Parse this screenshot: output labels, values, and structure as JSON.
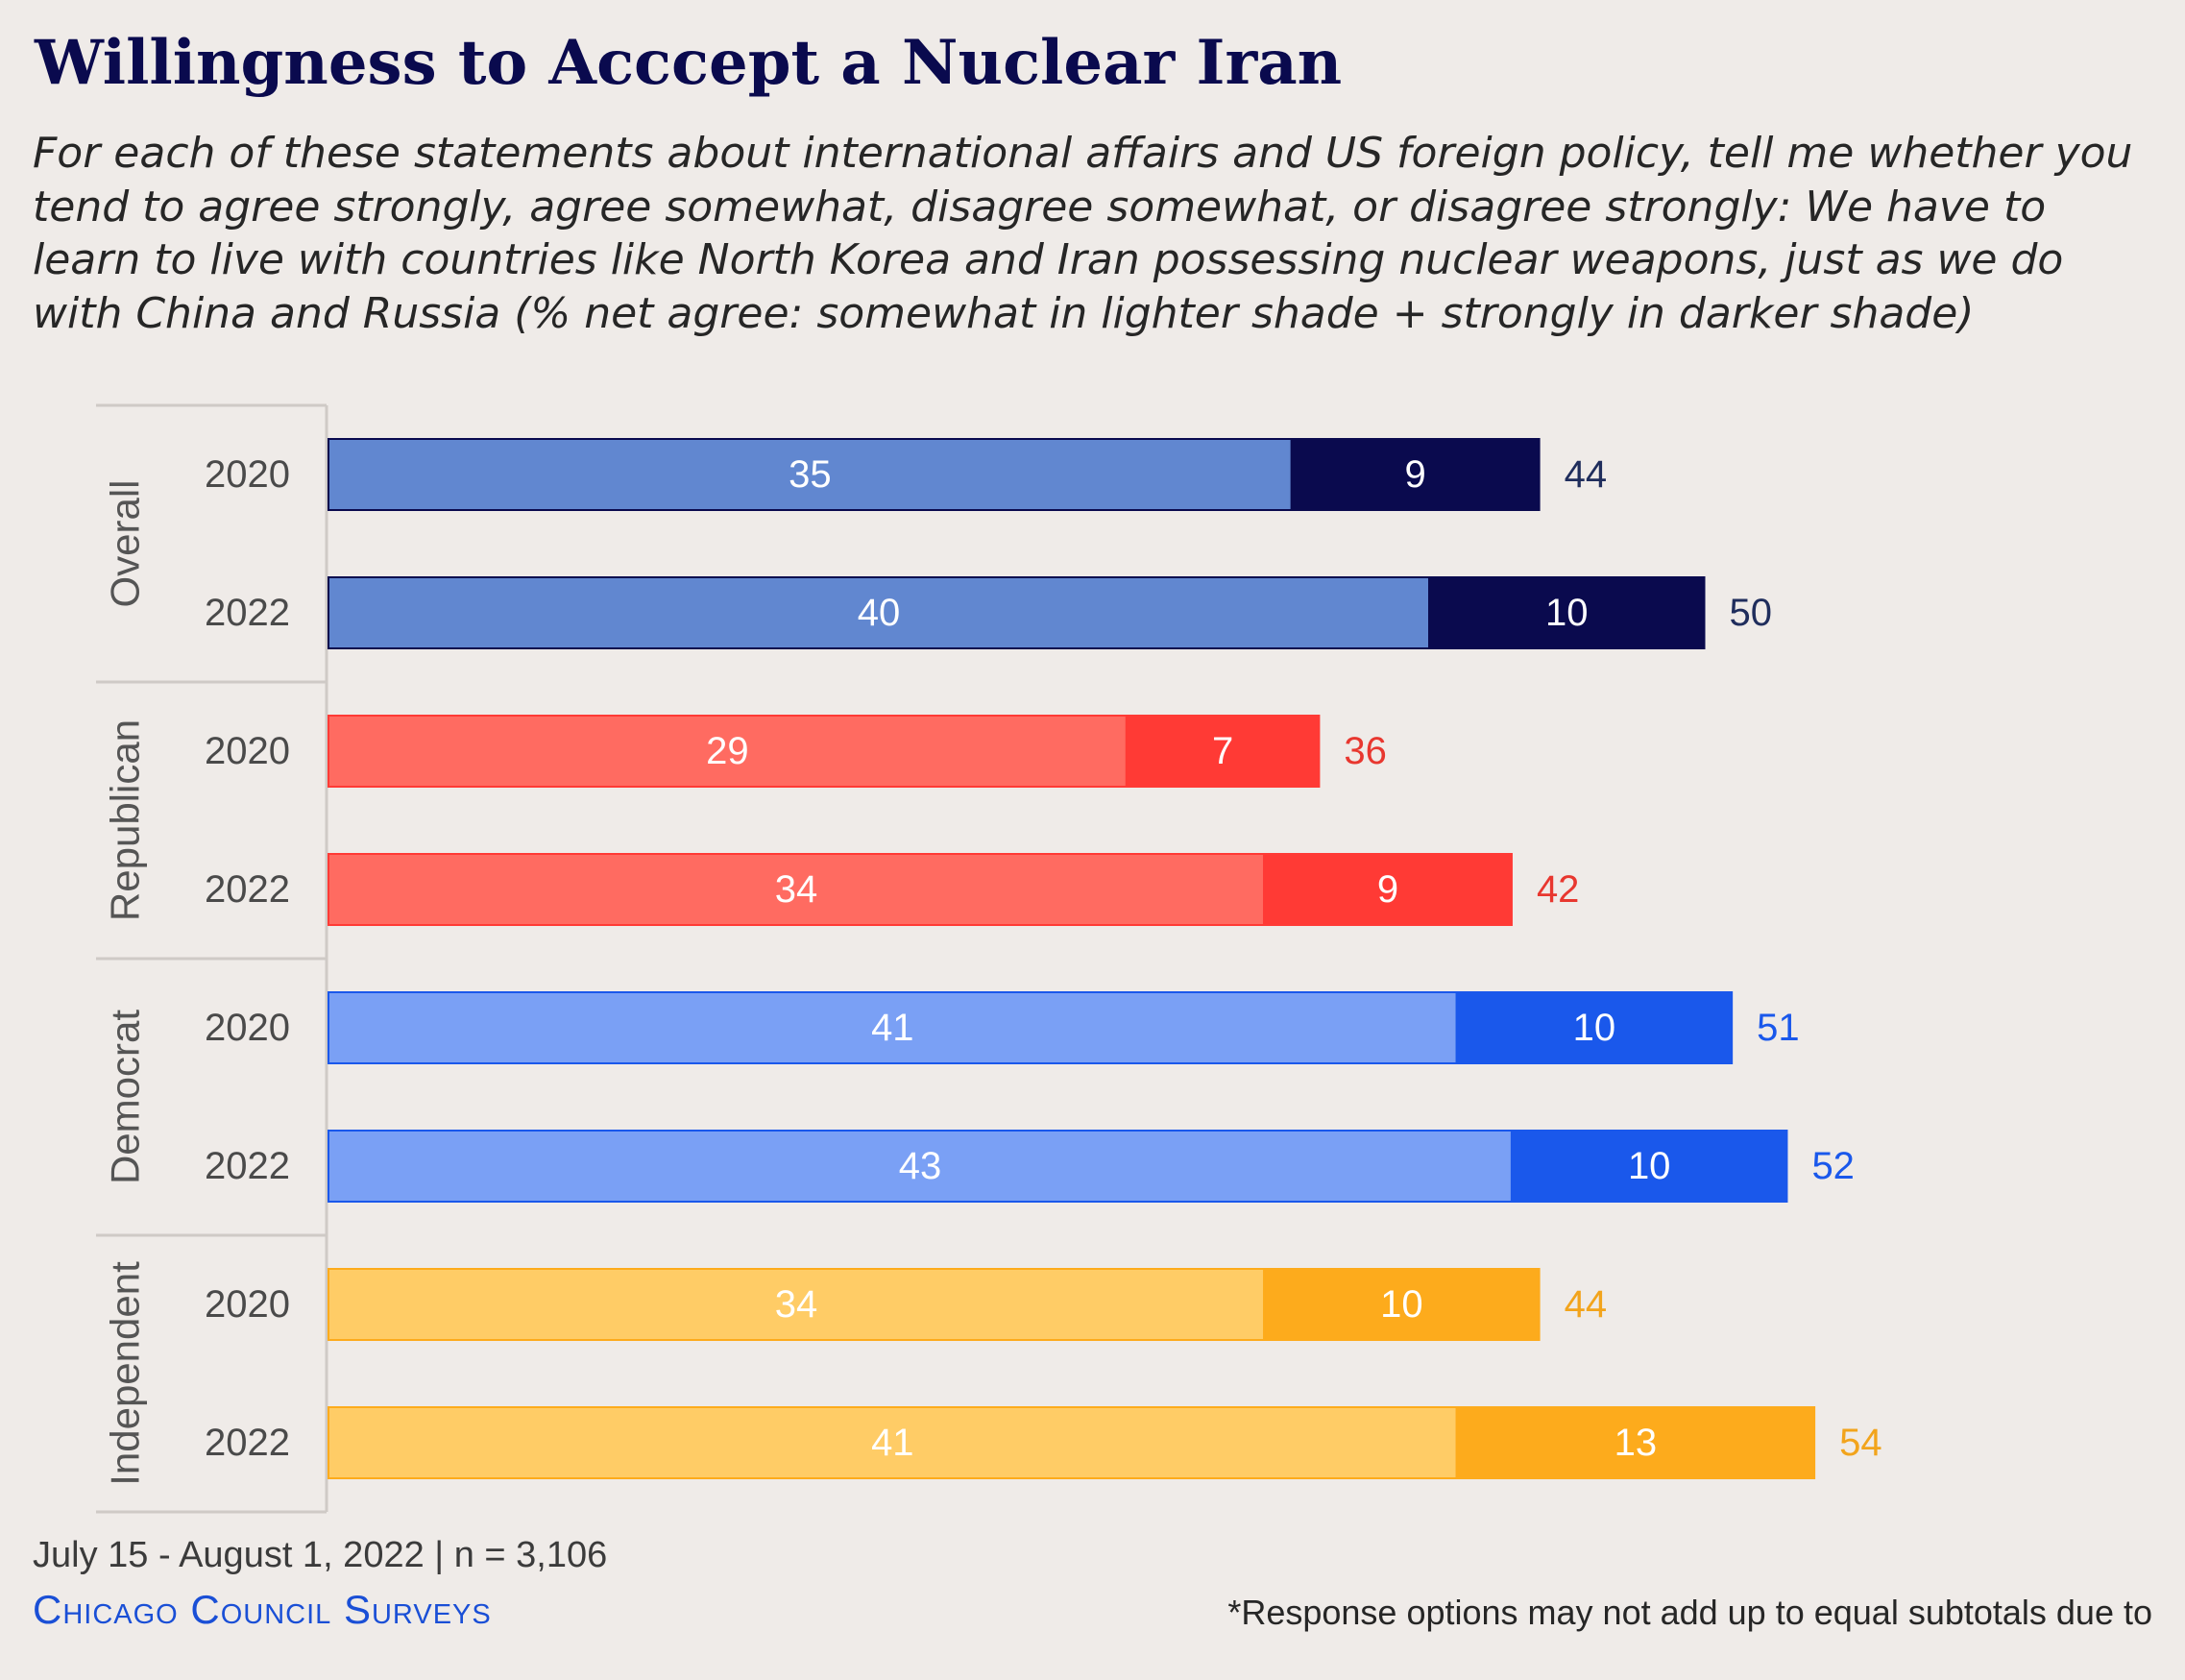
{
  "title": "Willingness to Acccept a Nuclear Iran",
  "subtitle": "For each of these statements about international affairs and US foreign policy, tell me whether you tend to agree strongly, agree somewhat, disagree somewhat, or disagree strongly: We have to learn to live with countries like North Korea and Iran possessing nuclear weapons, just as we do with China and Russia (% net agree: somewhat in lighter shade + strongly in darker shade)",
  "footer": {
    "date_sample": "July 15 - August 1, 2022 | n = 3,106",
    "source": "Chicago Council Surveys",
    "note": "*Response options may not add up to equal subtotals due to"
  },
  "chart_data": {
    "type": "bar",
    "orientation": "horizontal",
    "stacked": true,
    "groups": [
      {
        "name": "Overall",
        "light_color": "#6187d0",
        "dark_color": "#0a0a4e",
        "total_color": "#1f2d5c",
        "rows": [
          {
            "year": "2020",
            "somewhat": 35,
            "strongly": 9,
            "total": 44
          },
          {
            "year": "2022",
            "somewhat": 40,
            "strongly": 10,
            "total": 50
          }
        ]
      },
      {
        "name": "Republican",
        "light_color": "#ff6b61",
        "dark_color": "#ff3a35",
        "total_color": "#e8372f",
        "rows": [
          {
            "year": "2020",
            "somewhat": 29,
            "strongly": 7,
            "total": 36
          },
          {
            "year": "2022",
            "somewhat": 34,
            "strongly": 9,
            "total": 42
          }
        ]
      },
      {
        "name": "Democrat",
        "light_color": "#7aa0f5",
        "dark_color": "#1a58eb",
        "total_color": "#1a58eb",
        "rows": [
          {
            "year": "2020",
            "somewhat": 41,
            "strongly": 10,
            "total": 51
          },
          {
            "year": "2022",
            "somewhat": 43,
            "strongly": 10,
            "total": 52
          }
        ]
      },
      {
        "name": "Independent",
        "light_color": "#ffcc66",
        "dark_color": "#fdab1c",
        "total_color": "#f2a41c",
        "rows": [
          {
            "year": "2020",
            "somewhat": 34,
            "strongly": 10,
            "total": 44
          },
          {
            "year": "2022",
            "somewhat": 41,
            "strongly": 13,
            "total": 54
          }
        ]
      }
    ],
    "xlim": [
      0,
      100
    ],
    "grid": false,
    "legend": "none"
  }
}
